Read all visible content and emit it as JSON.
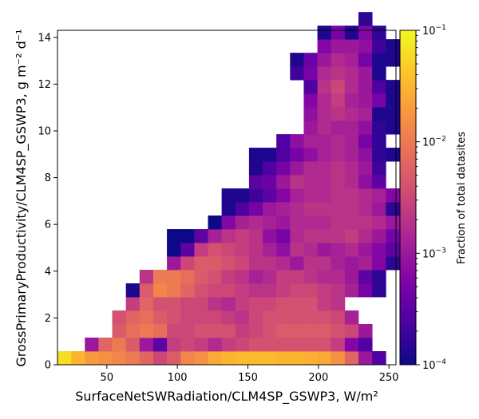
{
  "chart_data": {
    "type": "heatmap",
    "title": "",
    "xlabel": "SurfaceNetSWRadiation/CLM4SP_GSWP3,  W/m²",
    "ylabel": "GrossPrimaryProductivity/CLM4SP_GSWP3,  g m⁻² d⁻¹",
    "xlim": [
      15,
      255
    ],
    "ylim": [
      0,
      14.3
    ],
    "x_bin_start": 15,
    "x_bin_width": 9.7,
    "y_bin_width": 0.58,
    "x_ticks": [
      50,
      100,
      150,
      200,
      250
    ],
    "y_ticks": [
      0,
      2,
      4,
      6,
      8,
      10,
      12,
      14
    ],
    "colorbar": {
      "label": "Fraction of total datasites",
      "scale": "log",
      "range": [
        0.0001,
        0.1
      ],
      "ticks": [
        {
          "value": 0.1,
          "mant": "10",
          "exp": "−1"
        },
        {
          "value": 0.01,
          "mant": "10",
          "exp": "−2"
        },
        {
          "value": 0.001,
          "mant": "10",
          "exp": "−3"
        },
        {
          "value": 0.0001,
          "mant": "10",
          "exp": "−4"
        }
      ],
      "colormap": "plasma"
    },
    "cells_note": "each row: [y_bin_index, x_bin_start_index, [log10(fraction) values per consecutive x bin]]",
    "rows": [
      [
        0,
        0,
        [
          -1.2,
          -1.5,
          -1.7,
          -1.8,
          -1.9,
          -2.0,
          -2.2,
          -2.5,
          -2.3,
          -1.9,
          -1.8,
          -1.6,
          -1.5,
          -1.45,
          -1.45,
          -1.45,
          -1.5,
          -1.5,
          -1.55,
          -1.6,
          -1.8,
          -2.2,
          -3.0,
          -3.6
        ]
      ],
      [
        1,
        2,
        [
          -3.0,
          -2.2,
          -2.0,
          -2.3,
          -3.0,
          -3.5,
          -2.6,
          -2.5,
          -2.6,
          -2.8,
          -2.6,
          -2.5,
          -2.4,
          -2.4,
          -2.4,
          -2.4,
          -2.4,
          -2.4,
          -2.6,
          -3.2,
          -3.6
        ]
      ],
      [
        2,
        4,
        [
          -2.3,
          -2.1,
          -2.0,
          -2.1,
          -2.5,
          -2.5,
          -2.4,
          -2.4,
          -2.4,
          -2.6,
          -2.5,
          -2.4,
          -2.3,
          -2.3,
          -2.3,
          -2.3,
          -2.4,
          -2.5,
          -3.0
        ]
      ],
      [
        3,
        4,
        [
          -2.4,
          -2.2,
          -2.1,
          -2.3,
          -2.4,
          -2.5,
          -2.5,
          -2.5,
          -2.6,
          -2.7,
          -2.5,
          -2.4,
          -2.4,
          -2.4,
          -2.4,
          -2.4,
          -2.5,
          -2.9
        ]
      ],
      [
        4,
        5,
        [
          -2.6,
          -2.2,
          -2.4,
          -2.4,
          -2.5,
          -2.5,
          -2.7,
          -2.8,
          -2.6,
          -2.5,
          -2.5,
          -2.4,
          -2.4,
          -2.4,
          -2.6,
          -2.7
        ]
      ],
      [
        5,
        5,
        [
          -3.9,
          -2.3,
          -1.9,
          -2.0,
          -2.2,
          -2.4,
          -2.5,
          -2.5,
          -2.6,
          -2.7,
          -2.7,
          -2.6,
          -2.5,
          -2.5,
          -2.6,
          -2.7,
          -2.9,
          -3.3,
          -3.8
        ]
      ],
      [
        6,
        6,
        [
          -2.7,
          -2.0,
          -2.0,
          -2.1,
          -2.3,
          -2.4,
          -2.6,
          -2.7,
          -2.9,
          -2.8,
          -2.6,
          -2.6,
          -2.7,
          -2.8,
          -2.8,
          -3.0,
          -3.5,
          -3.8
        ]
      ],
      [
        7,
        8,
        [
          -3.0,
          -2.5,
          -2.3,
          -2.3,
          -2.4,
          -2.5,
          -2.7,
          -2.7,
          -2.8,
          -3.0,
          -2.7,
          -2.7,
          -2.9,
          -3.0,
          -2.9,
          -3.2,
          -3.8
        ]
      ],
      [
        8,
        8,
        [
          -4.0,
          -3.5,
          -2.6,
          -2.4,
          -2.5,
          -2.6,
          -2.7,
          -2.9,
          -3.1,
          -2.7,
          -2.8,
          -3.0,
          -2.9,
          -2.8,
          -3.0,
          -3.2,
          -3.5,
          -3.9
        ]
      ],
      [
        9,
        8,
        [
          -4.0,
          -4.0,
          -3.5,
          -2.9,
          -2.7,
          -2.6,
          -2.7,
          -3.1,
          -3.3,
          -2.8,
          -2.7,
          -2.7,
          -2.7,
          -2.6,
          -2.8,
          -3.0,
          -3.3,
          -3.9
        ]
      ],
      [
        10,
        11,
        [
          -4.0,
          -3.2,
          -2.9,
          -2.8,
          -2.9,
          -3.0,
          -2.8,
          -2.8,
          -2.8,
          -2.7,
          -2.7,
          -2.7,
          -2.8,
          -3.0,
          -3.9
        ]
      ],
      [
        11,
        12,
        [
          -3.9,
          -3.6,
          -3.3,
          -3.0,
          -2.9,
          -2.8,
          -2.7,
          -2.7,
          -2.7,
          -2.7,
          -2.8,
          -3.0,
          -3.8
        ]
      ],
      [
        12,
        12,
        [
          -3.9,
          -3.9,
          -3.7,
          -3.5,
          -3.2,
          -2.9,
          -2.8,
          -2.8,
          -2.7,
          -2.7,
          -2.8,
          -2.9,
          -3.2
        ]
      ],
      [
        13,
        14,
        [
          -3.5,
          -3.4,
          -3.0,
          -2.7,
          -2.8,
          -2.8,
          -2.7,
          -2.8,
          -3.1,
          -3.5
        ]
      ],
      [
        14,
        14,
        [
          -3.9,
          -3.6,
          -3.3,
          -3.0,
          -2.8,
          -2.8,
          -2.7,
          -2.8,
          -3.0,
          -3.7
        ]
      ],
      [
        15,
        14,
        [
          -3.9,
          -3.9,
          -3.6,
          -3.3,
          -3.1,
          -2.9,
          -2.8,
          -2.9,
          -3.1,
          -3.8,
          -3.9
        ]
      ],
      [
        16,
        16,
        [
          -3.6,
          -3.1,
          -2.9,
          -2.9,
          -2.8,
          -2.9,
          -3.3,
          -3.8
        ]
      ],
      [
        17,
        18,
        [
          -3.0,
          -2.8,
          -2.9,
          -2.9,
          -3.1,
          -3.8,
          -3.9
        ]
      ],
      [
        18,
        18,
        [
          -3.1,
          -2.8,
          -2.7,
          -2.8,
          -2.9,
          -3.9,
          -3.9
        ]
      ],
      [
        19,
        18,
        [
          -3.2,
          -2.8,
          -2.6,
          -2.9,
          -3.0,
          -3.3,
          -3.9
        ]
      ],
      [
        20,
        18,
        [
          -3.6,
          -2.7,
          -2.5,
          -2.8,
          -3.0,
          -3.6,
          -3.9
        ]
      ],
      [
        21,
        17,
        [
          -3.7,
          -3.3,
          -2.8,
          -2.7,
          -2.8,
          -3.0,
          -3.9
        ]
      ],
      [
        22,
        17,
        [
          -3.9,
          -3.4,
          -3.0,
          -2.8,
          -2.9,
          -3.3,
          -3.9,
          -3.9
        ]
      ],
      [
        23,
        19,
        [
          -3.2,
          -3.0,
          -3.0,
          -3.1,
          -3.7,
          -3.9
        ]
      ],
      [
        24,
        19,
        [
          -3.9,
          -3.3,
          -3.9,
          -3.2,
          -3.8
        ]
      ],
      [
        25,
        22,
        [
          -3.8
        ]
      ]
    ]
  }
}
